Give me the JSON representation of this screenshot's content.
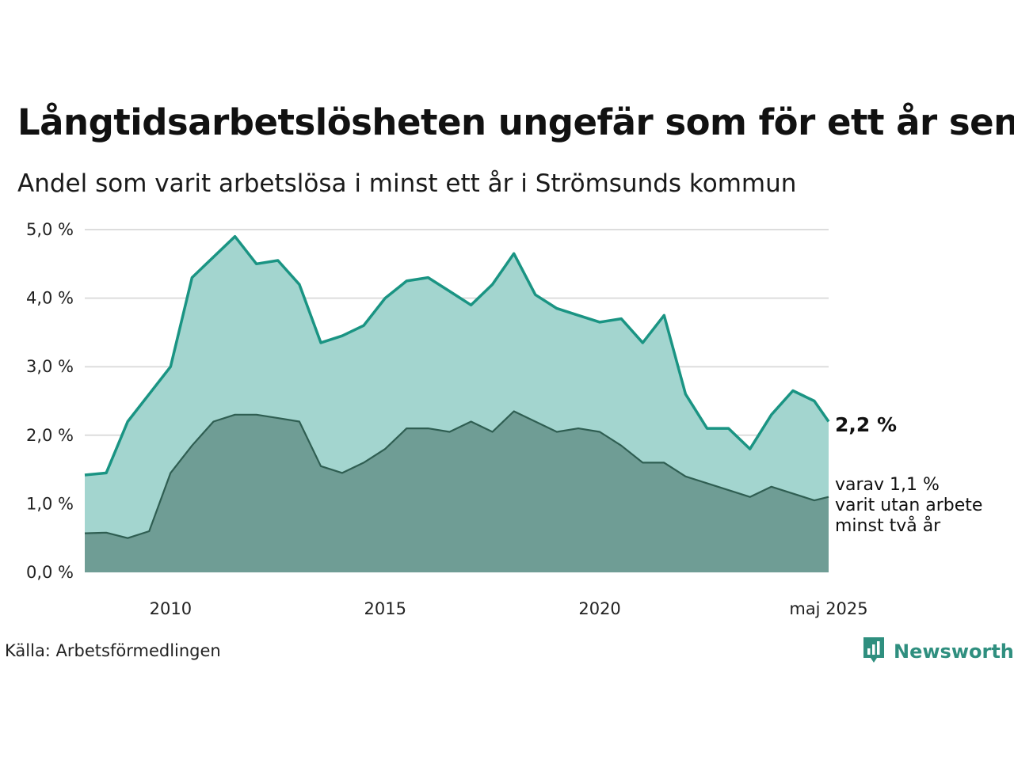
{
  "title": "Långtidsarbetslösheten ungefär som för ett år sen",
  "subtitle": "Andel som varit arbetslösa i minst ett år i Strömsunds kommun",
  "source": "Källa: Arbetsförmedlingen",
  "brand": {
    "name": "Newsworthy",
    "icon": "newsworthy-logo-icon",
    "color": "#2f8f7f"
  },
  "chart_data": {
    "type": "area",
    "x_tick_labels": [
      "2010",
      "2015",
      "2020",
      "maj 2025"
    ],
    "y_tick_labels": [
      "0,0 %",
      "1,0 %",
      "2,0 %",
      "3,0 %",
      "4,0 %",
      "5,0 %"
    ],
    "ylim": [
      0,
      5
    ],
    "xlim": [
      "2008-01",
      "2025-05"
    ],
    "grid": true,
    "colors": {
      "main_line": "#1a9483",
      "main_fill": "#a3d5cf",
      "sub_line": "#2f5e52",
      "sub_fill": "#6f9d95",
      "grid": "#dddddd"
    },
    "end_labels": {
      "main": "2,2 %",
      "sub_lines": [
        "varav 1,1 %",
        "varit utan arbete",
        "minst två år"
      ]
    },
    "series": [
      {
        "name": "",
        "x": [
          "2008-01",
          "2008-07",
          "2009-01",
          "2009-07",
          "2010-01",
          "2010-07",
          "2011-01",
          "2011-07",
          "2012-01",
          "2012-07",
          "2013-01",
          "2013-07",
          "2014-01",
          "2014-07",
          "2015-01",
          "2015-07",
          "2016-01",
          "2016-07",
          "2017-01",
          "2017-07",
          "2018-01",
          "2018-07",
          "2019-01",
          "2019-07",
          "2020-01",
          "2020-07",
          "2021-01",
          "2021-07",
          "2022-01",
          "2022-07",
          "2023-01",
          "2023-07",
          "2024-01",
          "2024-07",
          "2025-01",
          "2025-05"
        ],
        "values": [
          1.42,
          1.45,
          2.2,
          2.6,
          3.0,
          4.3,
          4.6,
          4.9,
          4.5,
          4.55,
          4.2,
          3.35,
          3.45,
          3.6,
          4.0,
          4.25,
          4.3,
          4.1,
          3.9,
          4.2,
          4.65,
          4.05,
          3.85,
          3.75,
          3.65,
          3.7,
          3.35,
          3.75,
          2.6,
          2.1,
          2.1,
          1.8,
          2.3,
          2.65,
          2.5,
          2.2
        ]
      },
      {
        "name": "",
        "x": [
          "2008-01",
          "2008-07",
          "2009-01",
          "2009-07",
          "2010-01",
          "2010-07",
          "2011-01",
          "2011-07",
          "2012-01",
          "2012-07",
          "2013-01",
          "2013-07",
          "2014-01",
          "2014-07",
          "2015-01",
          "2015-07",
          "2016-01",
          "2016-07",
          "2017-01",
          "2017-07",
          "2018-01",
          "2018-07",
          "2019-01",
          "2019-07",
          "2020-01",
          "2020-07",
          "2021-01",
          "2021-07",
          "2022-01",
          "2022-07",
          "2023-01",
          "2023-07",
          "2024-01",
          "2024-07",
          "2025-01",
          "2025-05"
        ],
        "values": [
          0.57,
          0.58,
          0.5,
          0.6,
          1.45,
          1.85,
          2.2,
          2.3,
          2.3,
          2.25,
          2.2,
          1.55,
          1.45,
          1.6,
          1.8,
          2.1,
          2.1,
          2.05,
          2.2,
          2.05,
          2.35,
          2.2,
          2.05,
          2.1,
          2.05,
          1.85,
          1.6,
          1.6,
          1.4,
          1.3,
          1.2,
          1.1,
          1.25,
          1.15,
          1.05,
          1.1
        ]
      }
    ]
  }
}
